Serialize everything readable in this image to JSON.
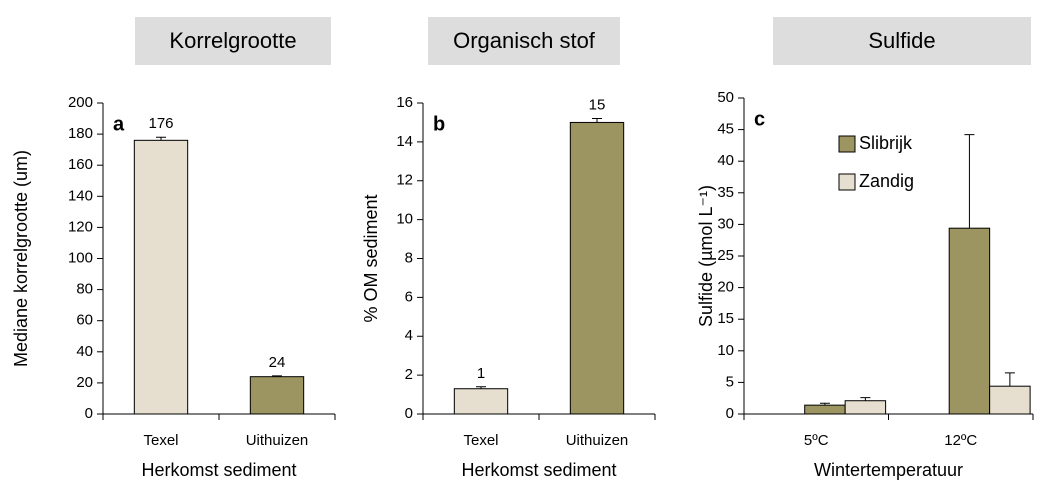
{
  "chart_data": [
    {
      "type": "bar",
      "title": "Korrelgrootte",
      "panel": "a",
      "xlabel": "Herkomst sediment",
      "ylabel": "Mediane korrelgrootte (um)",
      "categories": [
        "Texel",
        "Uithuizen"
      ],
      "values": [
        176,
        24
      ],
      "errors": [
        2,
        0.5
      ],
      "colors": [
        "#e6dfcf",
        "#9c9562"
      ],
      "ylim": [
        0,
        200
      ],
      "yticks": [
        0,
        20,
        40,
        60,
        80,
        100,
        120,
        140,
        160,
        180,
        200
      ],
      "grid": false
    },
    {
      "type": "bar",
      "title": "Organisch stof",
      "panel": "b",
      "xlabel": "Herkomst sediment",
      "ylabel": "% OM sediment",
      "categories": [
        "Texel",
        "Uithuizen"
      ],
      "values": [
        1.3,
        15
      ],
      "value_labels": [
        "1",
        "15"
      ],
      "errors": [
        0.1,
        0.2
      ],
      "colors": [
        "#e6dfcf",
        "#9c9562"
      ],
      "ylim": [
        0,
        16
      ],
      "yticks": [
        0,
        2,
        4,
        6,
        8,
        10,
        12,
        14,
        16
      ],
      "grid": false
    },
    {
      "type": "bar",
      "title": "Sulfide",
      "panel": "c",
      "xlabel": "Wintertemperatuur",
      "ylabel": "Sulfide (µmol L⁻¹)",
      "categories": [
        "5ºC",
        "12ºC"
      ],
      "series": [
        {
          "name": "Slibrijk",
          "color": "#9c9562",
          "values": [
            1.4,
            29.4
          ],
          "errors": [
            0.3,
            14.8
          ]
        },
        {
          "name": "Zandig",
          "color": "#e6dfcf",
          "values": [
            2.1,
            4.4
          ],
          "errors": [
            0.5,
            2.1
          ]
        }
      ],
      "legend": "upper left",
      "ylim": [
        0,
        50
      ],
      "yticks": [
        0,
        5,
        10,
        15,
        20,
        25,
        30,
        35,
        40,
        45,
        50
      ],
      "grid": false
    }
  ]
}
